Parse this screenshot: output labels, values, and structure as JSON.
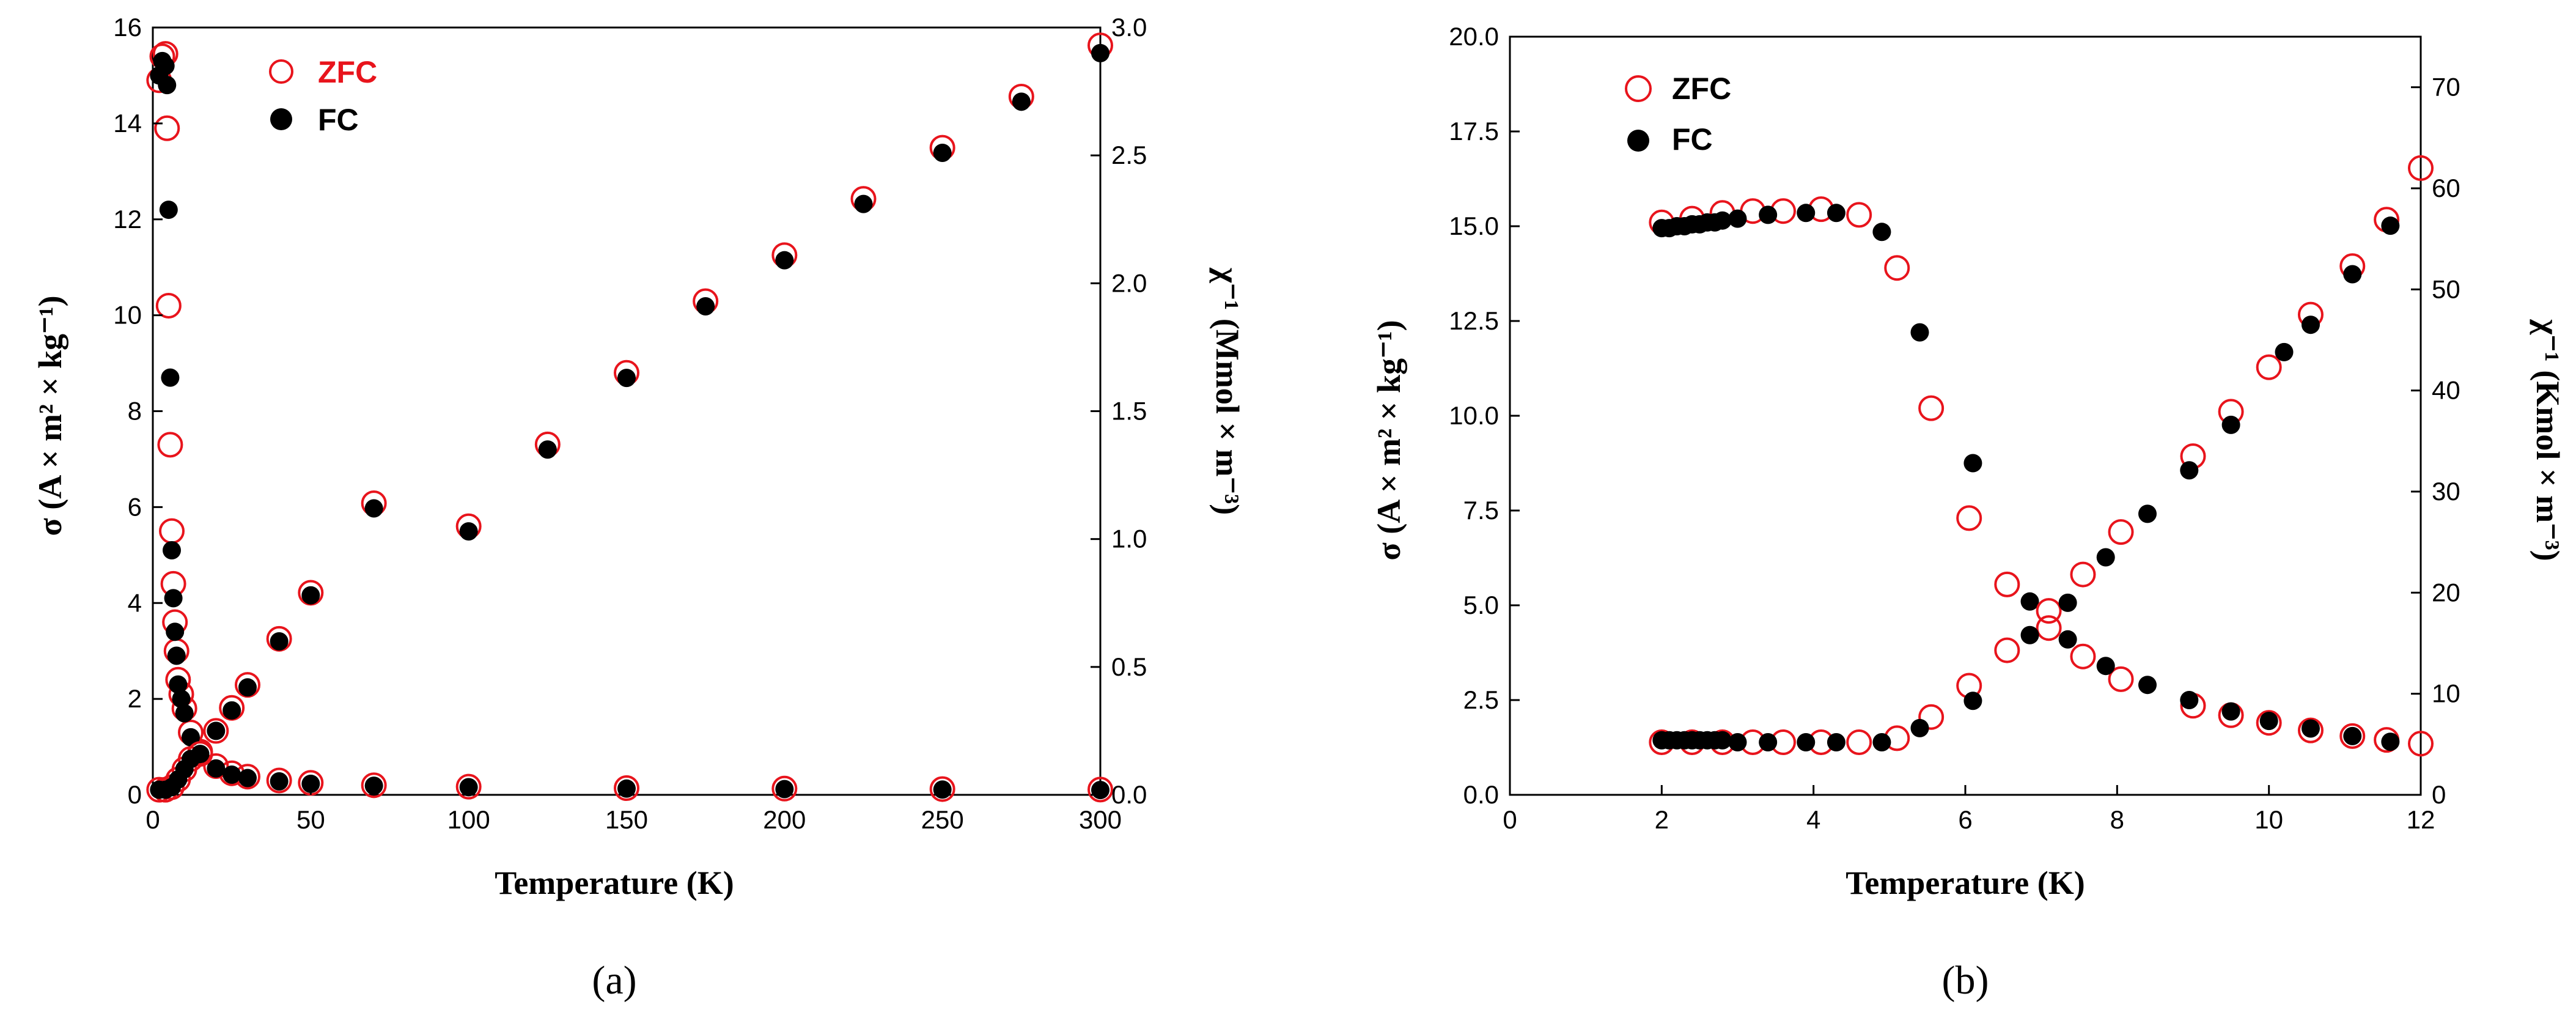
{
  "colors": {
    "zfc": "#e8141c",
    "fc": "#000000",
    "axis": "#000000"
  },
  "chart_data": [
    {
      "panel": "(a)",
      "type": "scatter",
      "xlabel": "Temperature (K)",
      "ylabel": "σ (A × m² × kg⁻¹)",
      "y2label": "χ⁻¹ (Mmol × m⁻³)",
      "xlim": [
        0,
        300
      ],
      "ylim": [
        0,
        16
      ],
      "y2lim": [
        0,
        3.0
      ],
      "xticks": [
        "0",
        "50",
        "100",
        "150",
        "200",
        "250",
        "300"
      ],
      "yticks": [
        "0",
        "2",
        "4",
        "6",
        "8",
        "10",
        "12",
        "14",
        "16"
      ],
      "y2ticks": [
        "0.0",
        "0.5",
        "1.0",
        "1.5",
        "2.0",
        "2.5",
        "3.0"
      ],
      "legend": {
        "position": "top-left",
        "entries": [
          "ZFC",
          "FC"
        ]
      },
      "series": [
        {
          "name": "ZFC",
          "axis": "left",
          "marker": "open-circle",
          "x": [
            2,
            3,
            4,
            4.5,
            5,
            5.5,
            6,
            6.5,
            7,
            7.5,
            8,
            9,
            10,
            12,
            15,
            20,
            25,
            30,
            40,
            50,
            70,
            100,
            150,
            200,
            250,
            300
          ],
          "y": [
            14.9,
            15.4,
            15.45,
            13.9,
            10.2,
            7.3,
            5.5,
            4.4,
            3.6,
            3.0,
            2.4,
            2.1,
            1.8,
            1.3,
            0.9,
            0.6,
            0.45,
            0.38,
            0.3,
            0.25,
            0.2,
            0.17,
            0.14,
            0.13,
            0.12,
            0.11
          ]
        },
        {
          "name": "FC",
          "axis": "left",
          "marker": "filled-circle",
          "x": [
            2,
            3,
            4,
            4.5,
            5,
            5.5,
            6,
            6.5,
            7,
            7.5,
            8,
            9,
            10,
            12,
            15,
            20,
            25,
            30,
            40,
            50,
            70,
            100,
            150,
            200,
            250,
            300
          ],
          "y": [
            15.0,
            15.3,
            15.2,
            14.8,
            12.2,
            8.7,
            5.1,
            4.1,
            3.4,
            2.9,
            2.3,
            2.0,
            1.7,
            1.2,
            0.85,
            0.55,
            0.42,
            0.35,
            0.28,
            0.23,
            0.19,
            0.16,
            0.13,
            0.12,
            0.11,
            0.1
          ]
        },
        {
          "name": "ZFC",
          "axis": "right",
          "marker": "open-circle",
          "x": [
            2,
            4,
            6,
            8,
            10,
            12,
            15,
            20,
            25,
            30,
            40,
            50,
            70,
            100,
            125,
            150,
            175,
            200,
            225,
            250,
            275,
            300
          ],
          "y": [
            0.02,
            0.02,
            0.03,
            0.06,
            0.1,
            0.14,
            0.16,
            0.25,
            0.34,
            0.43,
            0.61,
            0.79,
            1.14,
            1.05,
            1.37,
            1.65,
            1.93,
            2.11,
            2.33,
            2.53,
            2.73,
            2.93
          ]
        },
        {
          "name": "FC",
          "axis": "right",
          "marker": "filled-circle",
          "x": [
            2,
            4,
            6,
            8,
            10,
            12,
            15,
            20,
            25,
            30,
            40,
            50,
            70,
            100,
            125,
            150,
            175,
            200,
            225,
            250,
            275,
            300
          ],
          "y": [
            0.02,
            0.02,
            0.03,
            0.06,
            0.1,
            0.14,
            0.16,
            0.25,
            0.33,
            0.42,
            0.6,
            0.78,
            1.12,
            1.03,
            1.35,
            1.63,
            1.91,
            2.09,
            2.31,
            2.51,
            2.71,
            2.9
          ]
        }
      ]
    },
    {
      "panel": "(b)",
      "type": "scatter",
      "xlabel": "Temperature (K)",
      "ylabel": "σ (A × m² × kg⁻¹)",
      "y2label": "χ⁻¹ (Kmol × m⁻³)",
      "xlim": [
        0,
        12
      ],
      "ylim": [
        0,
        20
      ],
      "y2lim": [
        0,
        75
      ],
      "xticks": [
        "0",
        "2",
        "4",
        "6",
        "8",
        "10",
        "12"
      ],
      "yticks": [
        "0.0",
        "2.5",
        "5.0",
        "7.5",
        "10.0",
        "12.5",
        "15.0",
        "17.5",
        "20.0"
      ],
      "y2ticks": [
        "0",
        "10",
        "20",
        "30",
        "40",
        "50",
        "60",
        "70"
      ],
      "legend": {
        "position": "top-left",
        "entries": [
          "ZFC",
          "FC"
        ]
      },
      "series": [
        {
          "name": "ZFC",
          "axis": "left",
          "marker": "open-circle",
          "x": [
            2.0,
            2.4,
            2.8,
            3.2,
            3.6,
            4.1,
            4.6,
            5.1,
            5.55,
            6.05,
            6.55,
            7.1,
            7.55,
            8.05,
            9.0,
            9.5,
            10.0,
            10.55,
            11.1,
            11.55,
            12.0
          ],
          "y": [
            15.1,
            15.2,
            15.35,
            15.4,
            15.4,
            15.45,
            15.3,
            13.9,
            10.2,
            7.3,
            5.55,
            4.4,
            3.65,
            3.05,
            2.35,
            2.1,
            1.9,
            1.7,
            1.55,
            1.45,
            1.35
          ]
        },
        {
          "name": "FC",
          "axis": "left",
          "marker": "filled-circle",
          "x": [
            2.0,
            2.1,
            2.2,
            2.3,
            2.4,
            2.5,
            2.6,
            2.7,
            2.8,
            3.0,
            3.4,
            3.9,
            4.3,
            4.9,
            5.4,
            6.1,
            6.85,
            7.35,
            7.85,
            8.4,
            8.95,
            9.5,
            10.0,
            10.55,
            11.1,
            11.6
          ],
          "y": [
            14.95,
            14.95,
            15.0,
            15.0,
            15.05,
            15.05,
            15.1,
            15.1,
            15.15,
            15.2,
            15.3,
            15.35,
            15.35,
            14.85,
            12.2,
            8.75,
            5.1,
            4.1,
            3.4,
            2.9,
            2.5,
            2.2,
            1.95,
            1.75,
            1.55,
            1.4
          ]
        },
        {
          "name": "ZFC",
          "axis": "right",
          "marker": "open-circle",
          "x": [
            2.0,
            2.4,
            2.8,
            3.2,
            3.6,
            4.1,
            4.6,
            5.1,
            5.55,
            6.05,
            6.55,
            7.1,
            7.55,
            8.05,
            9.0,
            9.5,
            10.0,
            10.55,
            11.1,
            11.55,
            12.0
          ],
          "y": [
            5.2,
            5.2,
            5.2,
            5.2,
            5.2,
            5.2,
            5.2,
            5.6,
            7.7,
            10.8,
            14.3,
            18.2,
            21.8,
            26.0,
            33.5,
            37.9,
            42.3,
            47.5,
            52.3,
            56.9,
            62.0
          ]
        },
        {
          "name": "FC",
          "axis": "right",
          "marker": "filled-circle",
          "x": [
            2.0,
            2.1,
            2.2,
            2.3,
            2.4,
            2.5,
            2.6,
            2.7,
            2.8,
            3.0,
            3.4,
            3.9,
            4.3,
            4.9,
            5.4,
            6.1,
            6.85,
            7.35,
            7.85,
            8.4,
            8.95,
            9.5,
            10.2,
            10.55,
            11.1,
            11.6
          ],
          "y": [
            5.4,
            5.4,
            5.4,
            5.4,
            5.4,
            5.4,
            5.4,
            5.4,
            5.4,
            5.2,
            5.2,
            5.2,
            5.2,
            5.2,
            6.6,
            9.3,
            15.8,
            19.0,
            23.5,
            27.8,
            32.1,
            36.6,
            43.8,
            46.5,
            51.5,
            56.3
          ]
        }
      ]
    }
  ]
}
